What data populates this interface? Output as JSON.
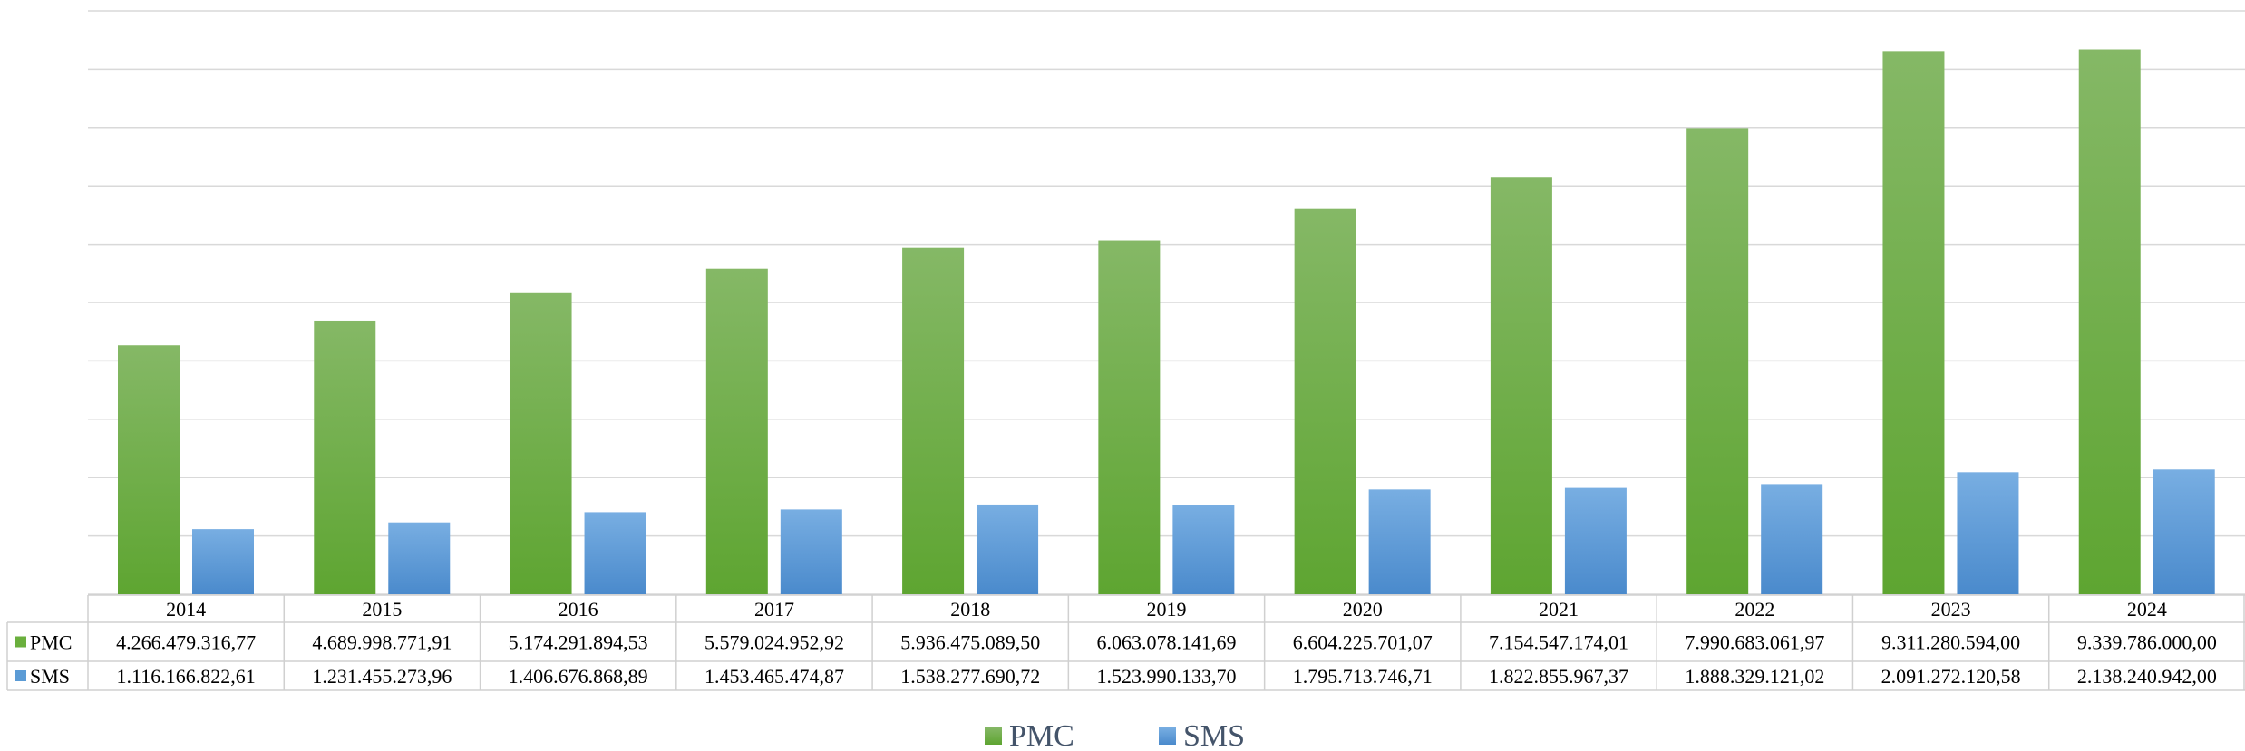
{
  "chart_data": {
    "type": "bar",
    "title": "",
    "xlabel": "",
    "ylabel": "",
    "ylim": [
      0,
      10000000000
    ],
    "grid": true,
    "data_table": true,
    "legend_position": "bottom",
    "categories": [
      "2014",
      "2015",
      "2016",
      "2017",
      "2018",
      "2019",
      "2020",
      "2021",
      "2022",
      "2023",
      "2024"
    ],
    "series": [
      {
        "name": "PMC",
        "color": "#6aaf3d",
        "values": [
          4266479316.77,
          4689998771.91,
          5174291894.53,
          5579024952.92,
          5936475089.5,
          6063078141.69,
          6604225701.07,
          7154547174.01,
          7990683061.97,
          9311280594.0,
          9339786000.0
        ],
        "labels": [
          "4.266.479.316,77",
          "4.689.998.771,91",
          "5.174.291.894,53",
          "5.579.024.952,92",
          "5.936.475.089,50",
          "6.063.078.141,69",
          "6.604.225.701,07",
          "7.154.547.174,01",
          "7.990.683.061,97",
          "9.311.280.594,00",
          "9.339.786.000,00"
        ]
      },
      {
        "name": "SMS",
        "color": "#5b9bd5",
        "values": [
          1116166822.61,
          1231455273.96,
          1406676868.89,
          1453465474.87,
          1538277690.72,
          1523990133.7,
          1795713746.71,
          1822855967.37,
          1888329121.02,
          2091272120.58,
          2138240942.0
        ],
        "labels": [
          "1.116.166.822,61",
          "1.231.455.273,96",
          "1.406.676.868,89",
          "1.453.465.474,87",
          "1.538.277.690,72",
          "1.523.990.133,70",
          "1.795.713.746,71",
          "1.822.855.967,37",
          "1.888.329.121,02",
          "2.091.272.120,58",
          "2.138.240.942,00"
        ]
      }
    ]
  }
}
